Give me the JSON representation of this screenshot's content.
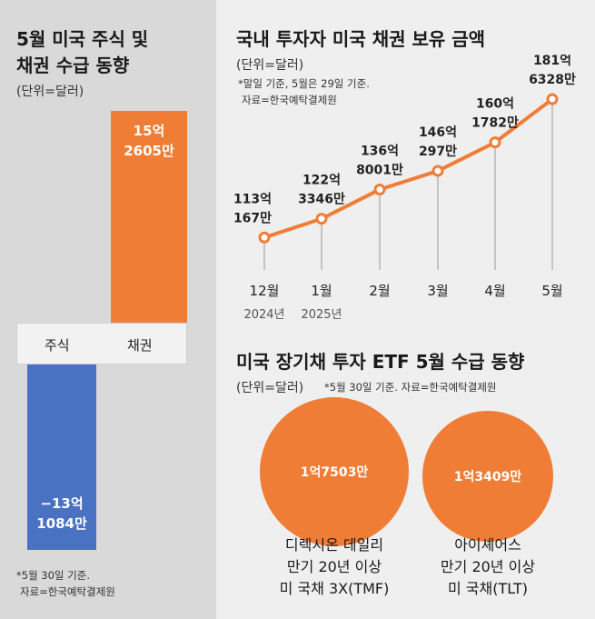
{
  "left": {
    "title_line1": "5월 미국 주식 및",
    "title_line2": "채권 수급 동향",
    "unit": "(단위=달러)",
    "note_line1": "*5월 30일 기준.",
    "note_line2": "자료=한국예탁결제원"
  },
  "right_top": {
    "title": "국내 투자자 미국 채권 보유 금액",
    "unit": "(단위=달러)",
    "note_line1": "*말일 기준, 5월은 29일 기준.",
    "note_line2": "자료=한국예탁결제원"
  },
  "right_bottom": {
    "title": "미국 장기채 투자 ETF 5월 수급 동향",
    "unit": "(단위=달러)",
    "note": "*5월 30일 기준. 자료=한국예탁결제원"
  },
  "colors": {
    "orange": "#f07d35",
    "blue": "#4a72c2",
    "line": "#f07d35"
  },
  "chart_data": [
    {
      "type": "bar",
      "title": "5월 미국 주식 및 채권 수급 동향",
      "unit": "달러",
      "categories": [
        "주식",
        "채권"
      ],
      "values": [
        -1310840000,
        1526050000
      ],
      "value_labels": [
        [
          "−13억",
          "1084만"
        ],
        [
          "15억",
          "2605만"
        ]
      ],
      "bar_colors": [
        "#4a72c2",
        "#f07d35"
      ]
    },
    {
      "type": "line",
      "title": "국내 투자자 미국 채권 보유 금액",
      "unit": "달러",
      "x": [
        "12월",
        "1월",
        "2월",
        "3월",
        "4월",
        "5월"
      ],
      "x_sub": [
        "2024년",
        "2025년",
        "",
        "",
        "",
        ""
      ],
      "values": [
        11301670000,
        12233460000,
        13680010000,
        14602970000,
        16017820000,
        18163280000
      ],
      "value_labels": [
        [
          "113억",
          "167만"
        ],
        [
          "122억",
          "3346만"
        ],
        [
          "136억",
          "8001만"
        ],
        [
          "146억",
          "297만"
        ],
        [
          "160억",
          "1782만"
        ],
        [
          "181억",
          "6328만"
        ]
      ]
    },
    {
      "type": "bubble",
      "title": "미국 장기채 투자 ETF 5월 수급 동향",
      "unit": "달러",
      "categories": [
        [
          "디렉시온 데일리",
          "만기 20년 이상",
          "미 국채 3X(TMF)"
        ],
        [
          "아이셰어스",
          "만기 20년 이상",
          "미 국채(TLT)"
        ]
      ],
      "values": [
        175030000,
        134090000
      ],
      "value_labels": [
        "1억7503만",
        "1억3409만"
      ]
    }
  ]
}
